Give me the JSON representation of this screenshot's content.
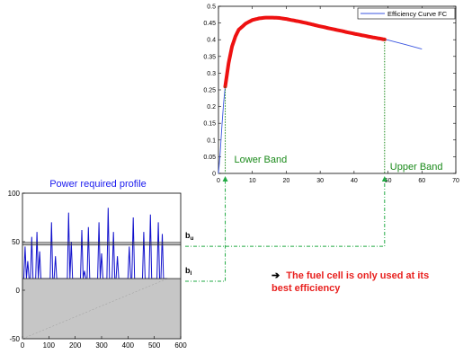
{
  "colors": {
    "efficiency_line": "#3a55e0",
    "best_band": "#ee1111",
    "band_label": "#1a8a1a",
    "connector": "#22aa44",
    "profile_line": "#1010cc",
    "profile_title": "#1a1aee",
    "negative_fill": "#c6c6c6",
    "threshold_lines": "#333333",
    "note_text": "#e8201e"
  },
  "note": {
    "arrow": "➔",
    "text": "The fuel cell is only used at its best efficiency"
  },
  "chart_data": [
    {
      "type": "line",
      "title": "",
      "xlabel": "",
      "ylabel": "",
      "xlim": [
        0,
        70
      ],
      "ylim": [
        0,
        0.5
      ],
      "x_ticks": [
        "0",
        "10",
        "20",
        "30",
        "40",
        "50",
        "60",
        "70"
      ],
      "y_ticks": [
        "0",
        "0.05",
        "0.1",
        "0.15",
        "0.2",
        "0.25",
        "0.3",
        "0.35",
        "0.4",
        "0.45",
        "0.5"
      ],
      "legend": {
        "position": "top-right",
        "entries": [
          "Efficiency Curve FC"
        ]
      },
      "series": [
        {
          "name": "Efficiency Curve FC",
          "x": [
            0,
            0.5,
            1,
            1.5,
            2,
            3,
            4,
            5,
            6,
            8,
            10,
            12,
            14,
            16,
            18,
            20,
            25,
            30,
            35,
            40,
            45,
            50,
            55,
            60
          ],
          "y": [
            0,
            0.06,
            0.14,
            0.21,
            0.26,
            0.33,
            0.38,
            0.41,
            0.43,
            0.448,
            0.459,
            0.464,
            0.466,
            0.466,
            0.465,
            0.462,
            0.452,
            0.44,
            0.429,
            0.418,
            0.408,
            0.399,
            0.386,
            0.372
          ]
        }
      ],
      "highlight": {
        "x_start": 2,
        "x_end": 49,
        "band_labels": {
          "lower": "Lower Band",
          "upper": "Upper Band"
        }
      }
    },
    {
      "type": "line",
      "title": "Power required profile",
      "xlabel": "",
      "ylabel": "",
      "xlim": [
        0,
        600
      ],
      "ylim": [
        -50,
        100
      ],
      "x_ticks": [
        "0",
        "100",
        "200",
        "300",
        "400",
        "500",
        "600"
      ],
      "y_ticks": [
        "-50",
        "0",
        "50",
        "100"
      ],
      "thresholds": [
        {
          "label": "b",
          "sub": "u",
          "value": 48
        },
        {
          "label": "b",
          "sub": "l",
          "value": 12
        }
      ],
      "series": [
        {
          "name": "",
          "x": [
            0,
            5,
            10,
            15,
            20,
            25,
            30,
            35,
            40,
            45,
            50,
            55,
            60,
            65,
            70,
            75,
            80,
            85,
            90,
            95,
            100,
            105,
            110,
            115,
            120,
            125,
            130,
            135,
            140,
            145,
            150,
            155,
            160,
            165,
            170,
            175,
            180,
            185,
            190,
            195,
            200,
            205,
            210,
            215,
            220,
            225,
            230,
            235,
            240,
            245,
            250,
            255,
            260,
            265,
            270,
            275,
            280,
            285,
            290,
            295,
            300,
            305,
            310,
            315,
            320,
            325,
            330,
            335,
            340,
            345,
            350,
            355,
            360,
            365,
            370,
            375,
            380,
            385,
            390,
            395,
            400,
            405,
            410,
            415,
            420,
            425,
            430,
            435,
            440,
            445,
            450,
            455,
            460,
            465,
            470,
            475,
            480,
            485,
            490,
            495,
            500,
            505,
            510,
            515,
            520,
            525,
            530,
            535,
            540,
            545,
            550
          ],
          "y": [
            12,
            12,
            45,
            12,
            30,
            12,
            12,
            55,
            12,
            12,
            12,
            60,
            12,
            40,
            12,
            12,
            12,
            12,
            12,
            12,
            12,
            12,
            70,
            12,
            12,
            35,
            12,
            12,
            12,
            12,
            12,
            12,
            12,
            12,
            12,
            80,
            12,
            50,
            12,
            12,
            12,
            12,
            12,
            12,
            12,
            62,
            12,
            20,
            12,
            12,
            65,
            12,
            12,
            12,
            12,
            12,
            12,
            12,
            70,
            12,
            38,
            12,
            12,
            12,
            12,
            85,
            12,
            12,
            12,
            60,
            12,
            12,
            35,
            12,
            12,
            12,
            12,
            12,
            12,
            12,
            12,
            45,
            12,
            12,
            75,
            12,
            12,
            12,
            12,
            12,
            12,
            12,
            60,
            12,
            12,
            12,
            12,
            78,
            12,
            12,
            12,
            12,
            12,
            70,
            12,
            12,
            58,
            12,
            12,
            12,
            12
          ]
        },
        {
          "name": "",
          "x": [
            0,
            550
          ],
          "y": [
            -50,
            12
          ]
        }
      ]
    }
  ]
}
